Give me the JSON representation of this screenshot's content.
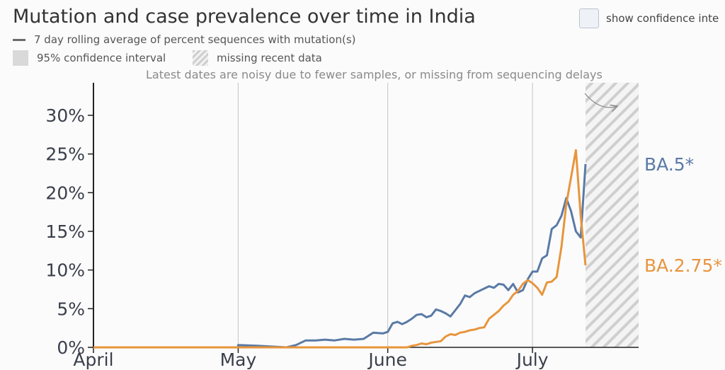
{
  "header": {
    "title": "Mutation and case prevalence over time in India",
    "toggle_label": "show confidence inte"
  },
  "legend": {
    "line_label": "7 day rolling average of percent sequences with mutation(s)",
    "ci_label": "95% confidence interval",
    "missing_label": "missing recent data"
  },
  "annotation": "Latest dates are noisy due to fewer samples, or missing from sequencing delays",
  "colors": {
    "ba5": "#5a7aa5",
    "ba275": "#e8953c",
    "grid": "#c4c4c4",
    "axis": "#222222"
  },
  "chart_data": {
    "type": "line",
    "x_unit": "days after April 1 2022",
    "xlim": [
      0,
      113
    ],
    "ylim": [
      0,
      30
    ],
    "y_ticks": [
      {
        "value": 0,
        "label": "0%"
      },
      {
        "value": 5,
        "label": "5%"
      },
      {
        "value": 10,
        "label": "10%"
      },
      {
        "value": 15,
        "label": "15%"
      },
      {
        "value": 20,
        "label": "20%"
      },
      {
        "value": 25,
        "label": "25%"
      },
      {
        "value": 30,
        "label": "30%"
      }
    ],
    "x_ticks": [
      {
        "value": 0,
        "label": "April"
      },
      {
        "value": 30,
        "label": "May"
      },
      {
        "value": 61,
        "label": "June"
      },
      {
        "value": 91,
        "label": "July"
      }
    ],
    "missing_data_range": [
      102,
      113
    ],
    "series": [
      {
        "name": "BA.5*",
        "color": "#5a7aa5",
        "points": [
          [
            0,
            0
          ],
          [
            30,
            0
          ],
          [
            30,
            0.3
          ],
          [
            34,
            0.2
          ],
          [
            37,
            0.1
          ],
          [
            40,
            0
          ],
          [
            42,
            0.3
          ],
          [
            44,
            0.9
          ],
          [
            46,
            0.9
          ],
          [
            48,
            1.0
          ],
          [
            50,
            0.9
          ],
          [
            52,
            1.1
          ],
          [
            54,
            1.0
          ],
          [
            56,
            1.1
          ],
          [
            58,
            1.9
          ],
          [
            60,
            1.8
          ],
          [
            61,
            2.0
          ],
          [
            62,
            3.1
          ],
          [
            63,
            3.3
          ],
          [
            64,
            3.0
          ],
          [
            65,
            3.3
          ],
          [
            66,
            3.7
          ],
          [
            67,
            4.2
          ],
          [
            68,
            4.3
          ],
          [
            69,
            3.9
          ],
          [
            70,
            4.1
          ],
          [
            71,
            4.9
          ],
          [
            72,
            4.7
          ],
          [
            73,
            4.4
          ],
          [
            74,
            4.0
          ],
          [
            75,
            4.8
          ],
          [
            76,
            5.6
          ],
          [
            77,
            6.7
          ],
          [
            78,
            6.5
          ],
          [
            79,
            7.0
          ],
          [
            80,
            7.3
          ],
          [
            81,
            7.6
          ],
          [
            82,
            7.9
          ],
          [
            83,
            7.7
          ],
          [
            84,
            8.2
          ],
          [
            85,
            8.1
          ],
          [
            86,
            7.4
          ],
          [
            87,
            8.2
          ],
          [
            88,
            7.1
          ],
          [
            89,
            7.4
          ],
          [
            90,
            8.8
          ],
          [
            91,
            9.8
          ],
          [
            92,
            9.8
          ],
          [
            93,
            11.5
          ],
          [
            94,
            11.9
          ],
          [
            95,
            15.3
          ],
          [
            96,
            15.8
          ],
          [
            97,
            17.0
          ],
          [
            98,
            19.3
          ],
          [
            99,
            17.6
          ],
          [
            100,
            15.0
          ],
          [
            101,
            14.2
          ],
          [
            102,
            23.7
          ]
        ]
      },
      {
        "name": "BA.2.75*",
        "color": "#e8953c",
        "points": [
          [
            0,
            0
          ],
          [
            60,
            0
          ],
          [
            62,
            0
          ],
          [
            64,
            0
          ],
          [
            65,
            0
          ],
          [
            66,
            0.2
          ],
          [
            67,
            0.3
          ],
          [
            68,
            0.5
          ],
          [
            69,
            0.4
          ],
          [
            70,
            0.6
          ],
          [
            71,
            0.7
          ],
          [
            72,
            0.8
          ],
          [
            73,
            1.4
          ],
          [
            74,
            1.7
          ],
          [
            75,
            1.6
          ],
          [
            76,
            1.9
          ],
          [
            77,
            2.0
          ],
          [
            78,
            2.2
          ],
          [
            79,
            2.3
          ],
          [
            80,
            2.5
          ],
          [
            81,
            2.6
          ],
          [
            82,
            3.7
          ],
          [
            83,
            4.2
          ],
          [
            84,
            4.7
          ],
          [
            85,
            5.4
          ],
          [
            86,
            5.9
          ],
          [
            87,
            6.8
          ],
          [
            88,
            7.3
          ],
          [
            89,
            8.2
          ],
          [
            90,
            8.7
          ],
          [
            91,
            8.3
          ],
          [
            92,
            7.7
          ],
          [
            93,
            6.8
          ],
          [
            94,
            8.4
          ],
          [
            95,
            8.5
          ],
          [
            96,
            9.1
          ],
          [
            97,
            13.0
          ],
          [
            98,
            18.5
          ],
          [
            99,
            22.0
          ],
          [
            100,
            25.5
          ],
          [
            101,
            17.0
          ],
          [
            102,
            10.6
          ]
        ]
      }
    ]
  }
}
